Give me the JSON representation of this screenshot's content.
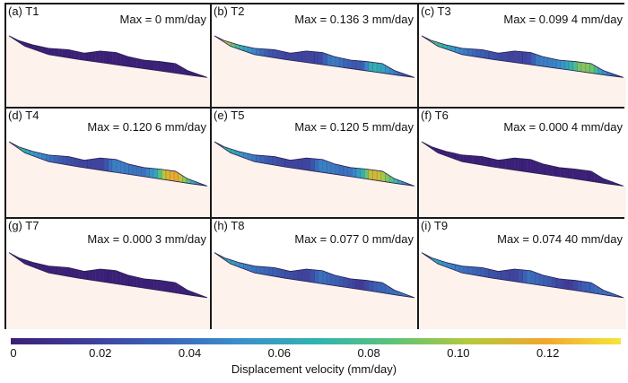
{
  "chart_data": {
    "type": "heatmap",
    "title": "",
    "description": "Slope displacement velocity contours over 9 time steps",
    "panels": [
      {
        "label": "(a) T1",
        "max_text": "Max = 0 mm/day",
        "max": 0,
        "profile": [
          0,
          0,
          0,
          0,
          0,
          0,
          0,
          0,
          0,
          0,
          0,
          0,
          0,
          0,
          0,
          0,
          0,
          0,
          0,
          0
        ]
      },
      {
        "label": "(b) T2",
        "max_text": "Max = 0.136 3 mm/day",
        "max": 0.1363,
        "profile": [
          0.13,
          0.11,
          0.08,
          0.06,
          0.045,
          0.03,
          0.025,
          0.02,
          0.02,
          0.02,
          0.02,
          0.045,
          0.04,
          0.03,
          0.03,
          0.07,
          0.06,
          0.045,
          0.03,
          0.01
        ]
      },
      {
        "label": "(c) T3",
        "max_text": "Max = 0.099 4 mm/day",
        "max": 0.0994,
        "profile": [
          0.095,
          0.085,
          0.07,
          0.055,
          0.045,
          0.035,
          0.03,
          0.025,
          0.02,
          0.02,
          0.02,
          0.045,
          0.045,
          0.05,
          0.065,
          0.095,
          0.09,
          0.055,
          0.035,
          0.01
        ]
      },
      {
        "label": "(d) T4",
        "max_text": "Max = 0.120 6 mm/day",
        "max": 0.1206,
        "profile": [
          0.085,
          0.075,
          0.06,
          0.05,
          0.04,
          0.03,
          0.025,
          0.02,
          0.02,
          0.02,
          0.045,
          0.045,
          0.04,
          0.04,
          0.06,
          0.11,
          0.12,
          0.09,
          0.05,
          0.01
        ]
      },
      {
        "label": "(e) T5",
        "max_text": "Max = 0.120 5 mm/day",
        "max": 0.1205,
        "profile": [
          0.085,
          0.075,
          0.06,
          0.05,
          0.04,
          0.03,
          0.025,
          0.02,
          0.02,
          0.02,
          0.045,
          0.045,
          0.04,
          0.04,
          0.065,
          0.115,
          0.1,
          0.08,
          0.05,
          0.01
        ]
      },
      {
        "label": "(f) T6",
        "max_text": "Max = 0.000 4 mm/day",
        "max": 0.0004,
        "profile": [
          0,
          0,
          0,
          0,
          0,
          0,
          0,
          0,
          0,
          0,
          0,
          0,
          0,
          0,
          0,
          0,
          0,
          0,
          0,
          0
        ]
      },
      {
        "label": "(g) T7",
        "max_text": "Max = 0.000 3 mm/day",
        "max": 0.0003,
        "profile": [
          0,
          0,
          0,
          0,
          0,
          0,
          0,
          0,
          0,
          0,
          0,
          0,
          0,
          0,
          0,
          0,
          0,
          0,
          0,
          0
        ]
      },
      {
        "label": "(h) T8",
        "max_text": "Max = 0.077 0 mm/day",
        "max": 0.077,
        "profile": [
          0.075,
          0.065,
          0.055,
          0.045,
          0.04,
          0.035,
          0.03,
          0.025,
          0.02,
          0.02,
          0.04,
          0.035,
          0.03,
          0.02,
          0.015,
          0.03,
          0.035,
          0.04,
          0.045,
          0.045
        ]
      },
      {
        "label": "(i) T9",
        "max_text": "Max = 0.074 40 mm/day",
        "max": 0.0744,
        "profile": [
          0.072,
          0.065,
          0.055,
          0.045,
          0.04,
          0.035,
          0.03,
          0.025,
          0.02,
          0.02,
          0.04,
          0.035,
          0.03,
          0.02,
          0.015,
          0.03,
          0.035,
          0.04,
          0.04,
          0.04
        ]
      }
    ],
    "colorbar": {
      "label": "Displacement velocity (mm/day)",
      "range": [
        0,
        0.1363
      ],
      "ticks": [
        0,
        0.02,
        0.04,
        0.06,
        0.08,
        0.1,
        0.12
      ],
      "tick_labels": [
        "0",
        "0.02",
        "0.04",
        "0.06",
        "0.08",
        "0.10",
        "0.12"
      ],
      "colormap": [
        "#3b1f78",
        "#3f3d9a",
        "#3a63b8",
        "#3a8fcc",
        "#2fb3b0",
        "#5cc27a",
        "#b5c93a",
        "#f0a72e",
        "#f5e53a"
      ]
    },
    "background_color": "#fdf2ec"
  }
}
